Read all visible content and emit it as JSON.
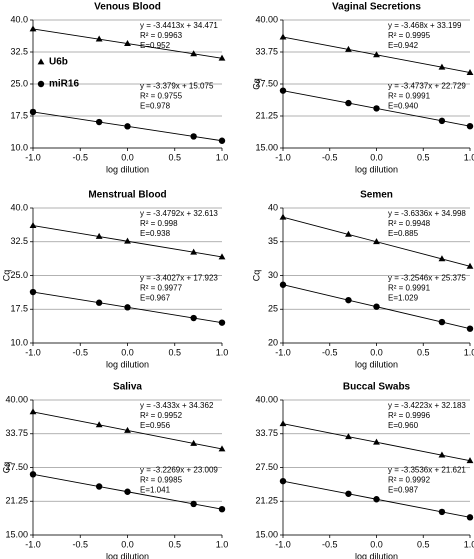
{
  "chart_data": [
    {
      "type": "line",
      "title": "Venous Blood",
      "xlabel": "log dilution",
      "xlim": [
        -1,
        1
      ],
      "ylim": [
        10,
        40
      ],
      "xticks": [
        {
          "value": -1,
          "label": "-1.0"
        },
        {
          "value": -0.5,
          "label": "-0.5"
        },
        {
          "value": 0,
          "label": "0.0"
        },
        {
          "value": 0.5,
          "label": "0.5"
        },
        {
          "value": 1,
          "label": "1.0"
        }
      ],
      "yticks": [
        {
          "value": 10,
          "label": "10.0"
        },
        17.5,
        {
          "value": 25,
          "label": "25.0"
        },
        32.5,
        {
          "value": 40,
          "label": "40.0"
        }
      ],
      "grid": true,
      "legend": "upper left",
      "x": [
        -1,
        -0.3,
        0,
        0.7,
        1
      ],
      "series": [
        {
          "name": "U6b",
          "marker": "triangle",
          "color": "#000000",
          "values": [
            37.91,
            35.51,
            34.47,
            32.07,
            31.03
          ],
          "annotation": [
            "y = -3.4413x + 34.471",
            "R² = 0.9963",
            "E=0.952"
          ]
        },
        {
          "name": "miR16",
          "marker": "circle",
          "color": "#000000",
          "values": [
            18.45,
            16.09,
            15.08,
            12.71,
            11.7
          ],
          "annotation": [
            "y = -3.379x + 15.075",
            "R² = 0.9755",
            "E=0.978"
          ]
        }
      ]
    },
    {
      "type": "line",
      "title": "Vaginal Secretions",
      "xlabel": "log dilution",
      "ylabel": "Cq",
      "xlim": [
        -1,
        1
      ],
      "ylim": [
        15,
        40
      ],
      "xticks": [
        {
          "value": -1,
          "label": "-1.0"
        },
        {
          "value": -0.5,
          "label": "-0.5"
        },
        {
          "value": 0,
          "label": "0.0"
        },
        {
          "value": 0.5,
          "label": "0.5"
        },
        {
          "value": 1,
          "label": "1.0"
        }
      ],
      "yticks": [
        {
          "value": 15,
          "label": "15.00"
        },
        21.25,
        {
          "value": 27.5,
          "label": "27.50"
        },
        33.75,
        {
          "value": 40,
          "label": "40.00"
        }
      ],
      "grid": true,
      "x": [
        -1,
        -0.3,
        0,
        0.7,
        1
      ],
      "series": [
        {
          "marker": "triangle",
          "color": "#000000",
          "values": [
            36.67,
            34.24,
            33.2,
            30.78,
            29.73
          ],
          "annotation": [
            "y = -3.468x + 33.199",
            "R² = 0.9995",
            "E=0.942"
          ]
        },
        {
          "marker": "circle",
          "color": "#000000",
          "values": [
            26.2,
            23.77,
            22.73,
            20.3,
            19.26
          ],
          "annotation": [
            "y = -3.4737x + 22.729",
            "R² = 0.9991",
            "E=0.940"
          ]
        }
      ]
    },
    {
      "type": "line",
      "title": "Menstrual Blood",
      "xlabel": "log dilution",
      "ylabel": "Cq",
      "xlim": [
        -1,
        1
      ],
      "ylim": [
        10,
        40
      ],
      "xticks": [
        {
          "value": -1,
          "label": "-1.0"
        },
        {
          "value": -0.5,
          "label": "-0.5"
        },
        {
          "value": 0,
          "label": "0.0"
        },
        {
          "value": 0.5,
          "label": "0.5"
        },
        {
          "value": 1,
          "label": "1.0"
        }
      ],
      "yticks": [
        {
          "value": 10,
          "label": "10.0"
        },
        17.5,
        {
          "value": 25,
          "label": "25.0"
        },
        32.5,
        {
          "value": 40,
          "label": "40.0"
        }
      ],
      "grid": true,
      "x": [
        -1,
        -0.3,
        0,
        0.7,
        1
      ],
      "series": [
        {
          "marker": "triangle",
          "color": "#000000",
          "values": [
            36.09,
            33.66,
            32.61,
            30.18,
            29.13
          ],
          "annotation": [
            "y = -3.4792x + 32.613",
            "R² = 0.998",
            "E=0.938"
          ]
        },
        {
          "marker": "circle",
          "color": "#000000",
          "values": [
            21.33,
            18.95,
            17.92,
            15.55,
            14.52
          ],
          "annotation": [
            "y = -3.4027x + 17.923",
            "R² = 0.9977",
            "E=0.967"
          ]
        }
      ]
    },
    {
      "type": "line",
      "title": "Semen",
      "xlabel": "log dilution",
      "ylabel": "Cq",
      "xlim": [
        -1,
        1
      ],
      "ylim": [
        20,
        40
      ],
      "xticks": [
        {
          "value": -1,
          "label": "-1.0"
        },
        {
          "value": -0.5,
          "label": "-0.5"
        },
        {
          "value": 0,
          "label": "0.0"
        },
        {
          "value": 0.5,
          "label": "0.5"
        },
        {
          "value": 1,
          "label": "1.0"
        }
      ],
      "yticks": [
        20,
        25,
        30,
        35,
        40
      ],
      "grid": true,
      "x": [
        -1,
        -0.3,
        0,
        0.7,
        1
      ],
      "series": [
        {
          "marker": "triangle",
          "color": "#000000",
          "values": [
            38.63,
            36.09,
            35.0,
            32.46,
            31.36
          ],
          "annotation": [
            "y = -3.6336x + 34.998",
            "R² = 0.9948",
            "E=0.885"
          ]
        },
        {
          "marker": "circle",
          "color": "#000000",
          "values": [
            28.63,
            26.35,
            25.38,
            23.1,
            22.12
          ],
          "annotation": [
            "y = -3.2546x + 25.375",
            "R² = 0.9991",
            "E=1.029"
          ]
        }
      ]
    },
    {
      "type": "line",
      "title": "Saliva",
      "xlabel": "log dilution",
      "ylabel": "Cq",
      "xlim": [
        -1,
        1
      ],
      "ylim": [
        15,
        40
      ],
      "xticks": [
        {
          "value": -1,
          "label": "-1.0"
        },
        {
          "value": -0.5,
          "label": "-0.5"
        },
        {
          "value": 0,
          "label": "0.0"
        },
        {
          "value": 0.5,
          "label": "0.5"
        },
        {
          "value": 1,
          "label": "1.0"
        }
      ],
      "yticks": [
        {
          "value": 15,
          "label": "15.00"
        },
        21.25,
        {
          "value": 27.5,
          "label": "27.50"
        },
        33.75,
        {
          "value": 40,
          "label": "40.00"
        }
      ],
      "grid": true,
      "x": [
        -1,
        -0.3,
        0,
        0.7,
        1
      ],
      "series": [
        {
          "marker": "triangle",
          "color": "#000000",
          "values": [
            37.8,
            35.4,
            34.36,
            31.96,
            30.93
          ],
          "annotation": [
            "y = -3.433x + 34.362",
            "R² = 0.9952",
            "E=0.956"
          ]
        },
        {
          "marker": "circle",
          "color": "#000000",
          "values": [
            26.24,
            23.98,
            23.01,
            20.75,
            19.78
          ],
          "annotation": [
            "y = -3.2269x + 23.009",
            "R² = 0.9985",
            "E=1.041"
          ]
        }
      ]
    },
    {
      "type": "line",
      "title": "Buccal Swabs",
      "xlabel": "log dilution",
      "xlim": [
        -1,
        1
      ],
      "ylim": [
        15,
        40
      ],
      "xticks": [
        {
          "value": -1,
          "label": "-1.0"
        },
        {
          "value": -0.5,
          "label": "-0.5"
        },
        {
          "value": 0,
          "label": "0.0"
        },
        {
          "value": 0.5,
          "label": "0.5"
        },
        {
          "value": 1,
          "label": "1.0"
        }
      ],
      "yticks": [
        {
          "value": 15,
          "label": "15.00"
        },
        21.25,
        {
          "value": 27.5,
          "label": "27.50"
        },
        33.75,
        {
          "value": 40,
          "label": "40.00"
        }
      ],
      "grid": true,
      "x": [
        -1,
        -0.3,
        0,
        0.7,
        1
      ],
      "series": [
        {
          "marker": "triangle",
          "color": "#000000",
          "values": [
            35.61,
            33.21,
            32.18,
            29.79,
            28.76
          ],
          "annotation": [
            "y = -3.4223x + 32.183",
            "R² = 0.9996",
            "E=0.960"
          ]
        },
        {
          "marker": "circle",
          "color": "#000000",
          "values": [
            24.97,
            22.63,
            21.62,
            19.28,
            18.27
          ],
          "annotation": [
            "y = -3.3536x + 21.621",
            "R² = 0.9992",
            "E=0.987"
          ]
        }
      ]
    }
  ]
}
